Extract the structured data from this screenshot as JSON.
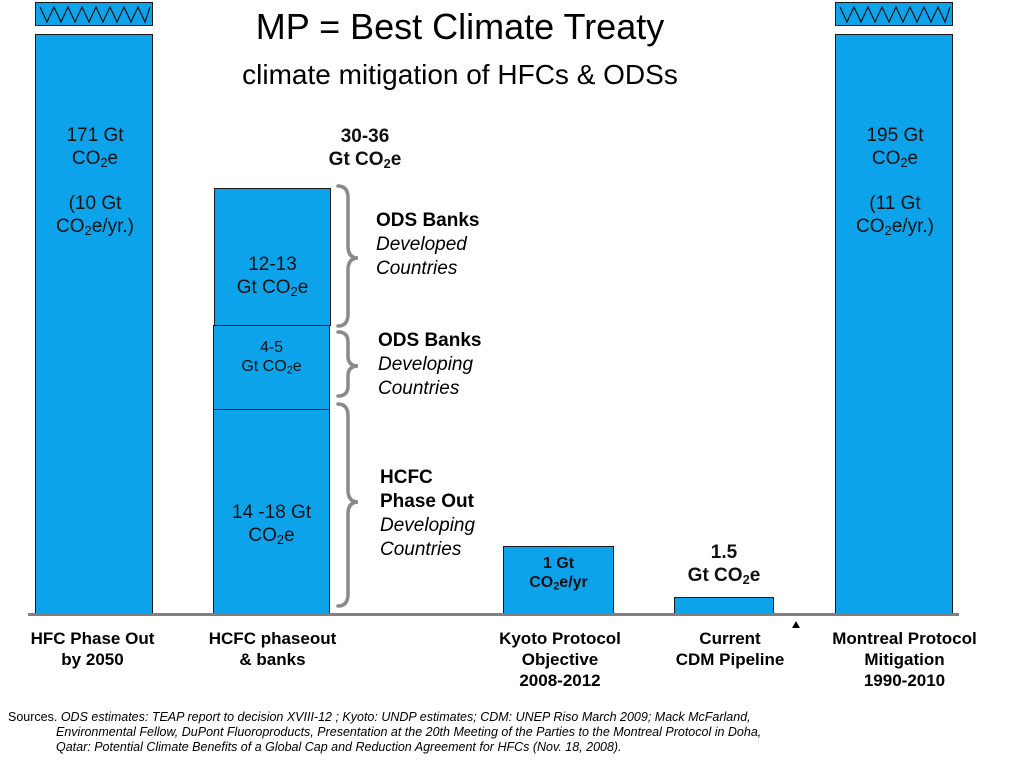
{
  "header": {
    "title": "MP = Best Climate Treaty",
    "subtitle": "climate mitigation of HFCs & ODSs"
  },
  "chart_data": {
    "type": "bar",
    "categories": [
      "HFC Phase Out by 2050",
      "HCFC phaseout & banks",
      "Kyoto Protocol Objective 2008-2012",
      "Current CDM Pipeline",
      "Montreal Protocol Mitigation 1990-2010"
    ],
    "category_lines": [
      [
        "HFC Phase Out",
        "by 2050"
      ],
      [
        "HCFC phaseout",
        "& banks"
      ],
      [
        "Kyoto Protocol",
        "Objective",
        "2008-2012"
      ],
      [
        "Current",
        "CDM Pipeline"
      ],
      [
        "Montreal Protocol",
        "Mitigation",
        "1990-2010"
      ]
    ],
    "unit": "Gt CO2e",
    "axis_broken_bars": [
      "HFC Phase Out by 2050",
      "Montreal Protocol Mitigation 1990-2010"
    ],
    "bars": [
      {
        "category": "HFC Phase Out by 2050",
        "value": 171,
        "label_lines": [
          {
            "pre": "171 Gt",
            "sub": "",
            "post": ""
          },
          {
            "pre": "CO",
            "sub": "2",
            "post": "e"
          },
          {
            "pre": "",
            "sub": "",
            "post": ""
          },
          {
            "pre": "(10 Gt",
            "sub": "",
            "post": ""
          },
          {
            "pre": "CO",
            "sub": "2",
            "post": "e/yr.)"
          }
        ]
      },
      {
        "category": "HCFC phaseout & banks",
        "stacked": true,
        "segments": [
          {
            "name": "HCFC Phase Out Developing Countries",
            "value_range": [
              14,
              18
            ],
            "label_lines": [
              {
                "pre": "14 -18 Gt",
                "sub": "",
                "post": ""
              },
              {
                "pre": "CO",
                "sub": "2",
                "post": "e"
              }
            ]
          },
          {
            "name": "ODS Banks Developing Countries",
            "value_range": [
              4,
              5
            ],
            "label_lines": [
              {
                "pre": "4-5",
                "sub": "",
                "post": ""
              },
              {
                "pre": "Gt CO",
                "sub": "2",
                "post": "e"
              }
            ]
          },
          {
            "name": "ODS Banks Developed Countries",
            "value_range": [
              12,
              13
            ],
            "label_lines": [
              {
                "pre": "12-13",
                "sub": "",
                "post": ""
              },
              {
                "pre": "Gt CO",
                "sub": "2",
                "post": "e"
              }
            ]
          }
        ],
        "total_label_lines": [
          {
            "pre": "30-36",
            "sub": "",
            "post": ""
          },
          {
            "pre": "Gt CO",
            "sub": "2",
            "post": "e"
          }
        ]
      },
      {
        "category": "Kyoto Protocol Objective 2008-2012",
        "value": 1,
        "label_lines": [
          {
            "pre": "1 Gt",
            "sub": "",
            "post": ""
          },
          {
            "pre": "CO",
            "sub": "2",
            "post": "e/yr"
          }
        ]
      },
      {
        "category": "Current CDM Pipeline",
        "value": 1.5,
        "label_lines": [
          {
            "pre": "1.5",
            "sub": "",
            "post": ""
          },
          {
            "pre": "Gt CO",
            "sub": "2",
            "post": "e"
          }
        ]
      },
      {
        "category": "Montreal Protocol Mitigation 1990-2010",
        "value": 195,
        "label_lines": [
          {
            "pre": "195 Gt",
            "sub": "",
            "post": ""
          },
          {
            "pre": "CO",
            "sub": "2",
            "post": "e"
          },
          {
            "pre": "",
            "sub": "",
            "post": ""
          },
          {
            "pre": "(11 Gt",
            "sub": "",
            "post": ""
          },
          {
            "pre": "CO",
            "sub": "2",
            "post": "e/yr.)"
          }
        ]
      }
    ],
    "brackets": [
      {
        "title": "ODS Banks",
        "subtitle_lines": [
          "Developed",
          "Countries"
        ]
      },
      {
        "title": "ODS Banks",
        "subtitle_lines": [
          "Developing",
          "Countries"
        ]
      },
      {
        "title_lines": [
          "HCFC",
          "Phase Out"
        ],
        "subtitle_lines": [
          "Developing",
          "Countries"
        ]
      }
    ],
    "colors": {
      "bar": "#0da3ea",
      "axis": "#808080",
      "bracket": "#808080"
    },
    "grid": false
  },
  "sources": {
    "label": "Sources.",
    "line1": "ODS estimates: TEAP report  to decision XVIII-12 ;  Kyoto: UNDP estimates; CDM: UNEP Riso March 2009; Mack McFarland,",
    "line2": "Environmental Fellow, DuPont Fluoroproducts, Presentation at the 20th Meeting of the Parties to the Montreal Protocol in Doha,",
    "line3": "Qatar: Potential Climate Benefits of a Global Cap and Reduction Agreement for HFCs (Nov. 18, 2008)."
  }
}
